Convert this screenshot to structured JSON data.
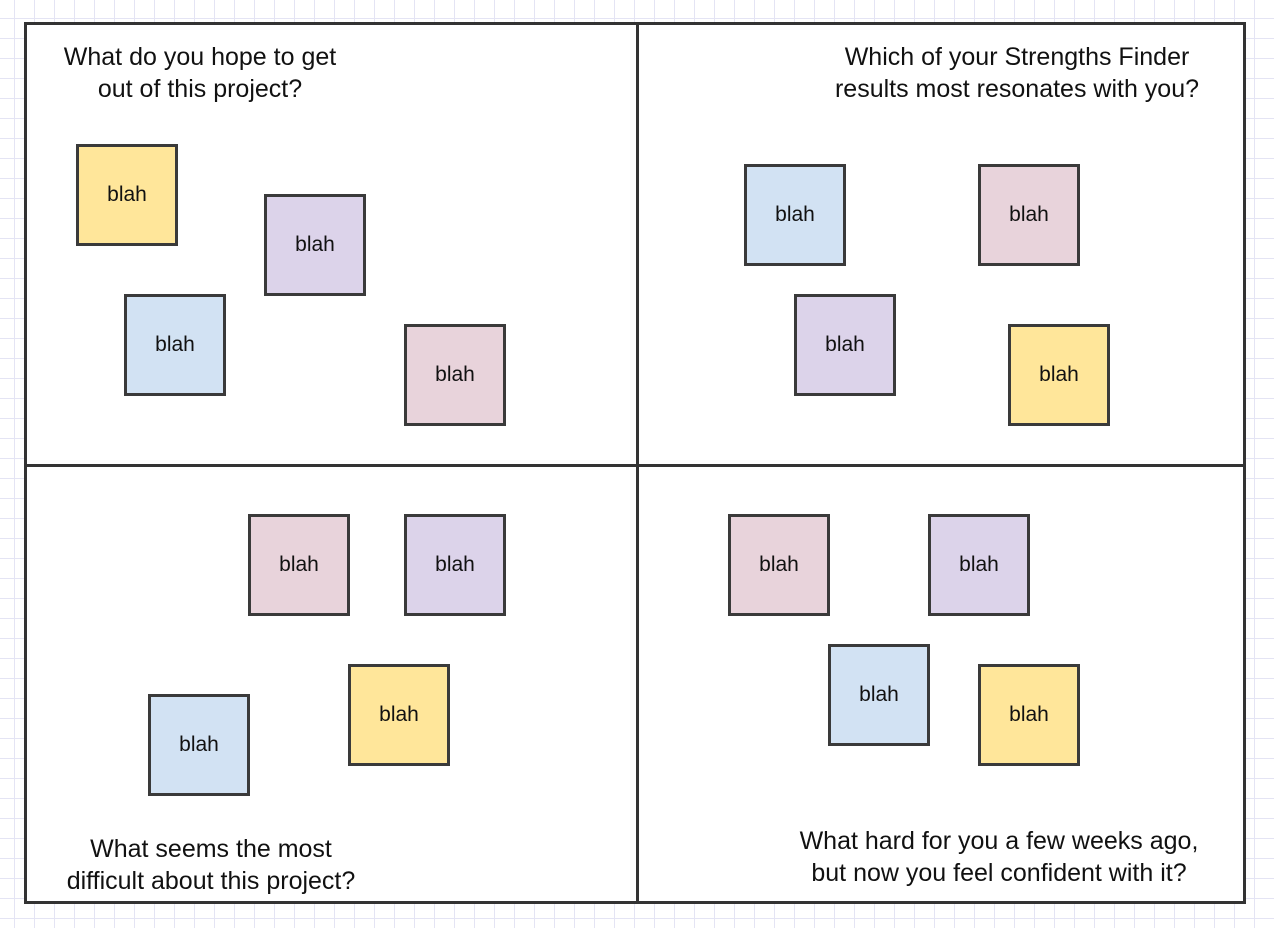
{
  "colors": {
    "yellow": "#ffe69a",
    "purple": "#dcd3ea",
    "blue": "#d2e2f3",
    "pink": "#e8d3db"
  },
  "quadrants": [
    {
      "prompt": "What do you hope to get\nout of this project?",
      "notes": [
        {
          "text": "blah",
          "color": "yellow"
        },
        {
          "text": "blah",
          "color": "purple"
        },
        {
          "text": "blah",
          "color": "blue"
        },
        {
          "text": "blah",
          "color": "pink"
        }
      ]
    },
    {
      "prompt": "Which of your Strengths Finder\nresults most resonates with you?",
      "notes": [
        {
          "text": "blah",
          "color": "blue"
        },
        {
          "text": "blah",
          "color": "pink"
        },
        {
          "text": "blah",
          "color": "purple"
        },
        {
          "text": "blah",
          "color": "yellow"
        }
      ]
    },
    {
      "prompt": "What seems the most\ndifficult about this project?",
      "notes": [
        {
          "text": "blah",
          "color": "pink"
        },
        {
          "text": "blah",
          "color": "purple"
        },
        {
          "text": "blah",
          "color": "yellow"
        },
        {
          "text": "blah",
          "color": "blue"
        }
      ]
    },
    {
      "prompt": "What hard for you a few weeks ago,\nbut now you feel confident with it?",
      "notes": [
        {
          "text": "blah",
          "color": "pink"
        },
        {
          "text": "blah",
          "color": "purple"
        },
        {
          "text": "blah",
          "color": "blue"
        },
        {
          "text": "blah",
          "color": "yellow"
        }
      ]
    }
  ]
}
